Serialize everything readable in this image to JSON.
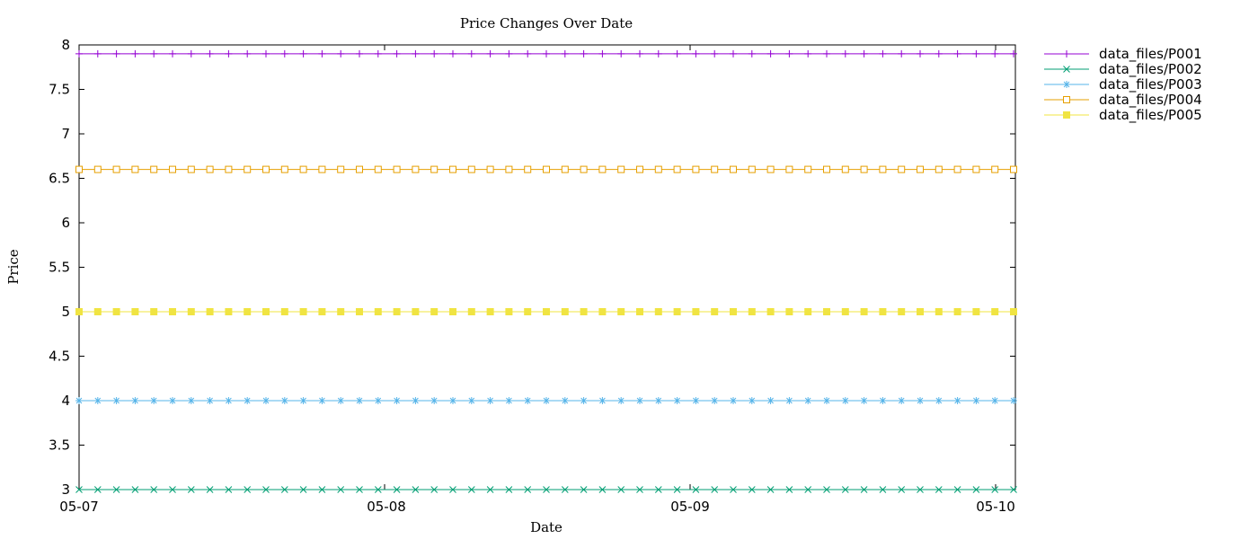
{
  "chart_data": {
    "type": "line",
    "title": "Price Changes Over Date",
    "xlabel": "Date",
    "ylabel": "Price",
    "ylim": [
      3,
      8
    ],
    "yticks": [
      3,
      3.5,
      4,
      4.5,
      5,
      5.5,
      6,
      6.5,
      7,
      7.5,
      8
    ],
    "xaxis": {
      "start": "05-07",
      "end": "05-10",
      "range_labels": [
        "05-07",
        "05-10"
      ],
      "ticks": [
        {
          "label": "05-07",
          "date": "05-07"
        },
        {
          "label": "05-08",
          "date": "05-08"
        },
        {
          "label": "05-09",
          "date": "05-09"
        },
        {
          "label": "05-10",
          "date": "05-10"
        }
      ]
    },
    "grid": false,
    "legend": "outside-top-right",
    "series": [
      {
        "name": "data_files/P001",
        "value": 7.9,
        "color": "#9400d3",
        "marker": "plus"
      },
      {
        "name": "data_files/P002",
        "value": 3.0,
        "color": "#009e73",
        "marker": "cross"
      },
      {
        "name": "data_files/P003",
        "value": 4.0,
        "color": "#56b4e9",
        "marker": "star"
      },
      {
        "name": "data_files/P004",
        "value": 6.6,
        "color": "#e69f00",
        "marker": "open-square"
      },
      {
        "name": "data_files/P005",
        "value": 5.0,
        "color": "#f0e442",
        "marker": "filled-square"
      }
    ]
  }
}
